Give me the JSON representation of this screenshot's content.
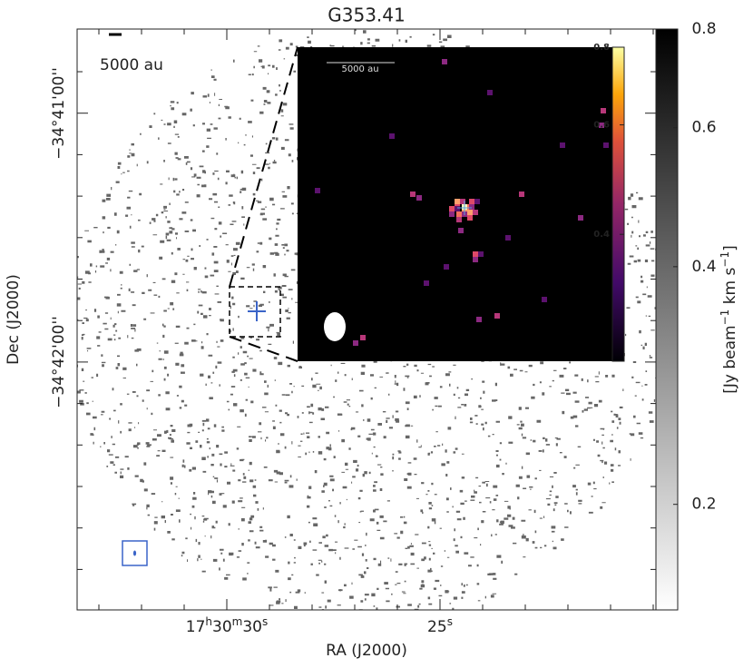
{
  "chart_data": {
    "type": "image",
    "title": "G353.41",
    "x_label": "RA (J2000)",
    "y_label": "Dec (J2000)",
    "xtick_labels": [
      [
        "17",
        "h",
        "30",
        "m",
        "30",
        "s"
      ],
      [
        "25",
        "s"
      ]
    ],
    "ytick_labels": [
      "−34°41'00''",
      "−34°42'00''"
    ],
    "scale_bar": "5000 au",
    "colorbar": {
      "label": [
        "[Jy beam",
        "−1",
        " km s",
        "−1",
        "]"
      ],
      "log": true,
      "lim": [
        0.147,
        0.8
      ],
      "ticks": [
        0.2,
        0.4,
        0.6,
        0.8
      ]
    },
    "inset": {
      "scale_bar": "5000 au",
      "colorbar": {
        "log": true,
        "lim": [
          0.25,
          0.8
        ],
        "ticks": [
          0.4,
          0.6,
          0.8
        ]
      }
    }
  }
}
